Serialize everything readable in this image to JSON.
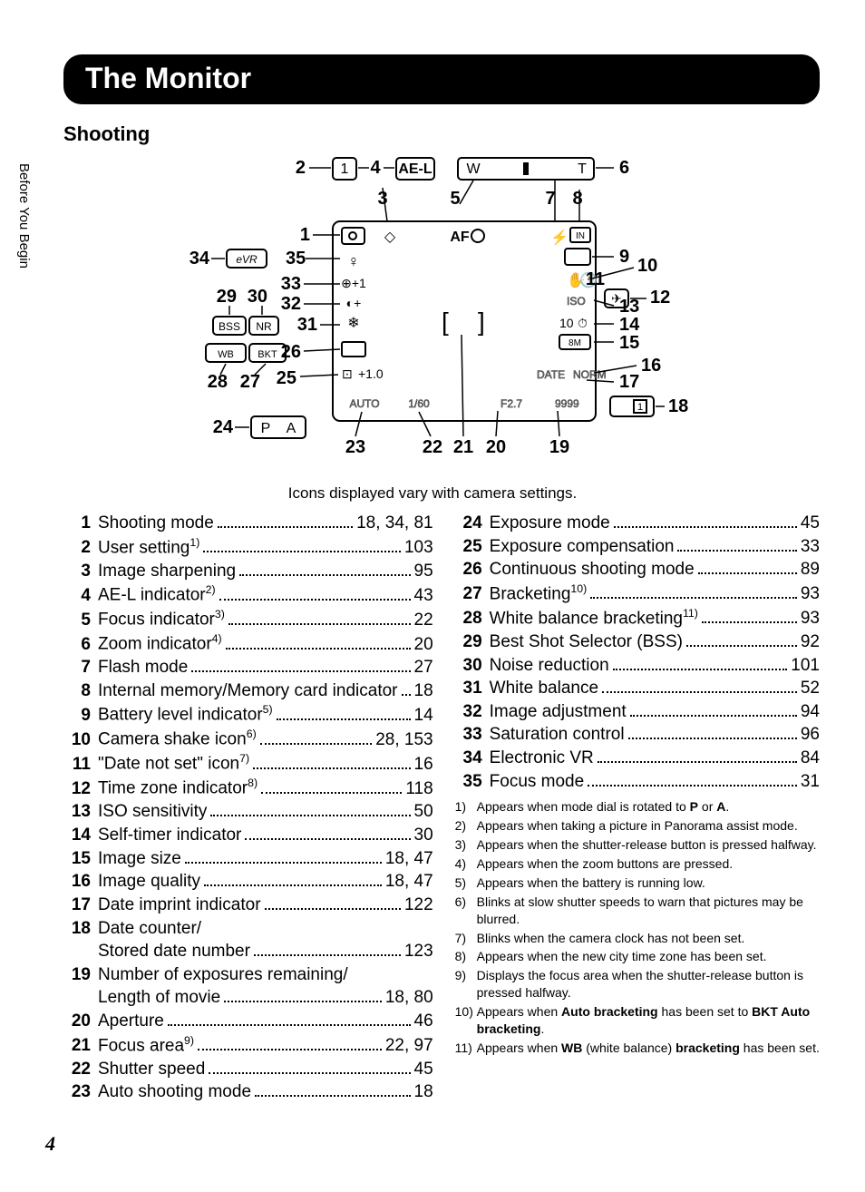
{
  "page": {
    "title": "The Monitor",
    "section": "Shooting",
    "vertical_tab": "Before You Begin",
    "diagram_caption": "Icons displayed vary with camera settings.",
    "page_number": "4"
  },
  "diagram": {
    "callouts": {
      "1": "1",
      "2": "2",
      "3": "3",
      "4": "4",
      "5": "5",
      "6": "6",
      "7": "7",
      "8": "8",
      "9": "9",
      "10": "10",
      "11": "11",
      "12": "12",
      "13": "13",
      "14": "14",
      "15": "15",
      "16": "16",
      "17": "17",
      "18": "18",
      "19": "19",
      "20": "20",
      "21": "21",
      "22": "22",
      "23": "23",
      "24": "24",
      "25": "25",
      "26": "26",
      "27": "27",
      "28": "28",
      "29": "29",
      "30": "30",
      "31": "31",
      "32": "32",
      "33": "33",
      "34": "34",
      "35": "35"
    },
    "icons": {
      "ael": "AE-L",
      "w": "W",
      "t": "T",
      "af": "AF",
      "iso": "ISO",
      "ten": "10",
      "eightm": "8M",
      "date": "DATE",
      "norm": "NORM",
      "auto": "AUTO",
      "shutter": "1/60",
      "fstop": "F2.7",
      "remain": "9999",
      "p": "P",
      "a": "A",
      "evr": "eVR",
      "bss": "BSS",
      "nr": "NR",
      "wb": "WB",
      "bkt": "BKT",
      "ev": "+1.0",
      "dot": "◇",
      "flash": "⚡",
      "in": "IN",
      "brackets_l": "[",
      "brackets_r": "]",
      "user": "1",
      "date_counter": "1",
      "plane": "✈"
    }
  },
  "entries_left": [
    {
      "n": "1",
      "label": "Shooting mode",
      "sup": "",
      "pages": "18, 34, 81"
    },
    {
      "n": "2",
      "label": "User setting",
      "sup": "1)",
      "pages": "103"
    },
    {
      "n": "3",
      "label": "Image sharpening",
      "sup": "",
      "pages": "95"
    },
    {
      "n": "4",
      "label": "AE-L indicator",
      "sup": "2)",
      "pages": "43"
    },
    {
      "n": "5",
      "label": "Focus indicator",
      "sup": "3)",
      "pages": "22"
    },
    {
      "n": "6",
      "label": "Zoom indicator",
      "sup": "4)",
      "pages": "20"
    },
    {
      "n": "7",
      "label": "Flash mode",
      "sup": "",
      "pages": "27"
    },
    {
      "n": "8",
      "label": "Internal memory/Memory card indicator",
      "sup": "",
      "pages": "18"
    },
    {
      "n": "9",
      "label": "Battery level indicator",
      "sup": "5)",
      "pages": "14"
    },
    {
      "n": "10",
      "label": "Camera shake icon",
      "sup": "6)",
      "pages": "28, 153"
    },
    {
      "n": "11",
      "label": "\"Date not set\" icon",
      "sup": "7)",
      "pages": "16"
    },
    {
      "n": "12",
      "label": "Time zone indicator",
      "sup": "8)",
      "pages": "118"
    },
    {
      "n": "13",
      "label": "ISO sensitivity",
      "sup": "",
      "pages": "50"
    },
    {
      "n": "14",
      "label": "Self-timer indicator",
      "sup": "",
      "pages": "30"
    },
    {
      "n": "15",
      "label": "Image size",
      "sup": "",
      "pages": "18, 47"
    },
    {
      "n": "16",
      "label": "Image quality",
      "sup": "",
      "pages": "18, 47"
    },
    {
      "n": "17",
      "label": "Date imprint indicator",
      "sup": "",
      "pages": "122"
    },
    {
      "n": "18",
      "label": "Date counter/ Stored date number",
      "sup": "",
      "pages": "123"
    },
    {
      "n": "19",
      "label": "Number of exposures remaining/ Length of movie",
      "sup": "",
      "pages": "18, 80"
    },
    {
      "n": "20",
      "label": "Aperture",
      "sup": "",
      "pages": "46"
    },
    {
      "n": "21",
      "label": "Focus area",
      "sup": "9)",
      "pages": "22, 97"
    },
    {
      "n": "22",
      "label": "Shutter speed",
      "sup": "",
      "pages": "45"
    },
    {
      "n": "23",
      "label": "Auto shooting mode",
      "sup": "",
      "pages": "18"
    }
  ],
  "entries_right": [
    {
      "n": "24",
      "label": "Exposure mode",
      "sup": "",
      "pages": "45"
    },
    {
      "n": "25",
      "label": "Exposure compensation",
      "sup": "",
      "pages": "33"
    },
    {
      "n": "26",
      "label": "Continuous shooting mode",
      "sup": "",
      "pages": "89"
    },
    {
      "n": "27",
      "label": "Bracketing",
      "sup": "10)",
      "pages": "93"
    },
    {
      "n": "28",
      "label": "White balance bracketing",
      "sup": "11)",
      "pages": "93"
    },
    {
      "n": "29",
      "label": "Best Shot Selector (BSS)",
      "sup": "",
      "pages": "92"
    },
    {
      "n": "30",
      "label": "Noise reduction",
      "sup": "",
      "pages": "101"
    },
    {
      "n": "31",
      "label": "White balance",
      "sup": "",
      "pages": "52"
    },
    {
      "n": "32",
      "label": "Image adjustment",
      "sup": "",
      "pages": "94"
    },
    {
      "n": "33",
      "label": "Saturation control",
      "sup": "",
      "pages": "96"
    },
    {
      "n": "34",
      "label": "Electronic VR",
      "sup": "",
      "pages": "84"
    },
    {
      "n": "35",
      "label": "Focus mode",
      "sup": "",
      "pages": "31"
    }
  ],
  "footnotes": [
    {
      "n": "1)",
      "html": "Appears when mode dial is rotated to <b>P</b> or <b>A</b>."
    },
    {
      "n": "2)",
      "html": "Appears when taking a picture in Panorama assist mode."
    },
    {
      "n": "3)",
      "html": "Appears when the shutter-release button is pressed halfway."
    },
    {
      "n": "4)",
      "html": "Appears when the zoom buttons are pressed."
    },
    {
      "n": "5)",
      "html": "Appears when the battery is running low."
    },
    {
      "n": "6)",
      "html": "Blinks at slow shutter speeds to warn that pictures may be blurred."
    },
    {
      "n": "7)",
      "html": "Blinks when the camera clock has not been set."
    },
    {
      "n": "8)",
      "html": "Appears when the new city time zone has been set."
    },
    {
      "n": "9)",
      "html": "Displays the focus area when the shutter-release button is pressed halfway."
    },
    {
      "n": "10)",
      "html": "Appears when <b>Auto bracketing</b> has been set to <b>BKT Auto bracketing</b>."
    },
    {
      "n": "11)",
      "html": "Appears when <b>WB</b> (white balance) <b>bracketing</b> has been set."
    }
  ]
}
